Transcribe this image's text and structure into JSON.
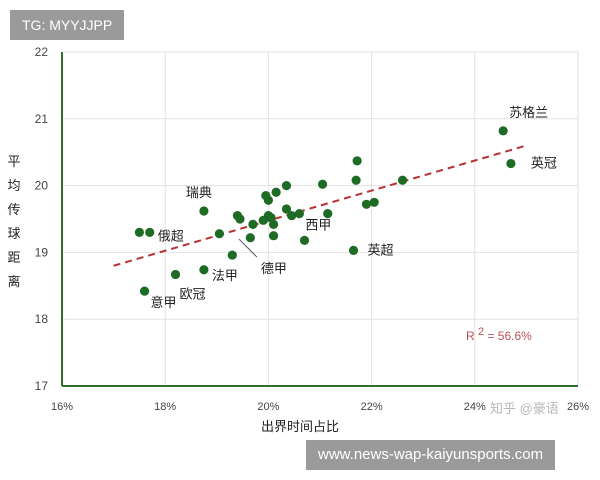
{
  "tag": "TG: MYYJJPP",
  "footer": "www.news-wap-kaiyunsports.com",
  "watermark": "知乎 @豪语",
  "chart_data": {
    "type": "scatter",
    "xlabel": "出界时间占比",
    "ylabel": "平均传球距离",
    "xlim": [
      16,
      26
    ],
    "ylim": [
      17,
      22
    ],
    "x_ticks": [
      "16%",
      "18%",
      "20%",
      "22%",
      "24%",
      "26%"
    ],
    "y_ticks": [
      "17",
      "18",
      "19",
      "20",
      "21",
      "22"
    ],
    "grid": true,
    "point_color": "#1e6b26",
    "trend_color": "#b83232",
    "trend_line": {
      "x": [
        17.0,
        25.0
      ],
      "y": [
        18.8,
        20.6
      ]
    },
    "annotation": {
      "prefix": "R",
      "sup": "2",
      "suffix": "= 56.6%"
    },
    "points": [
      {
        "x": 17.5,
        "y": 19.3
      },
      {
        "x": 17.7,
        "y": 19.3
      },
      {
        "x": 17.6,
        "y": 18.42
      },
      {
        "x": 18.2,
        "y": 18.67
      },
      {
        "x": 18.75,
        "y": 18.74
      },
      {
        "x": 18.75,
        "y": 19.62
      },
      {
        "x": 19.05,
        "y": 19.28
      },
      {
        "x": 19.3,
        "y": 18.96
      },
      {
        "x": 19.4,
        "y": 19.55
      },
      {
        "x": 19.45,
        "y": 19.5
      },
      {
        "x": 19.65,
        "y": 19.22
      },
      {
        "x": 19.7,
        "y": 19.42
      },
      {
        "x": 19.9,
        "y": 19.48
      },
      {
        "x": 19.95,
        "y": 19.85
      },
      {
        "x": 20.0,
        "y": 19.78
      },
      {
        "x": 20.0,
        "y": 19.55
      },
      {
        "x": 20.05,
        "y": 19.52
      },
      {
        "x": 20.1,
        "y": 19.25
      },
      {
        "x": 20.1,
        "y": 19.42
      },
      {
        "x": 20.15,
        "y": 19.9
      },
      {
        "x": 20.35,
        "y": 20.0
      },
      {
        "x": 20.35,
        "y": 19.65
      },
      {
        "x": 20.45,
        "y": 19.55
      },
      {
        "x": 20.6,
        "y": 19.58
      },
      {
        "x": 20.7,
        "y": 19.18
      },
      {
        "x": 21.05,
        "y": 20.02
      },
      {
        "x": 21.15,
        "y": 19.58
      },
      {
        "x": 21.65,
        "y": 19.03
      },
      {
        "x": 21.7,
        "y": 20.08
      },
      {
        "x": 21.72,
        "y": 20.37
      },
      {
        "x": 21.9,
        "y": 19.72
      },
      {
        "x": 22.05,
        "y": 19.75
      },
      {
        "x": 22.6,
        "y": 20.08
      },
      {
        "x": 24.55,
        "y": 20.82
      },
      {
        "x": 24.7,
        "y": 20.33
      }
    ],
    "labels": [
      {
        "text": "苏格兰",
        "x": 24.55,
        "y": 20.82,
        "dx": 6,
        "dy": -14
      },
      {
        "text": "英冠",
        "x": 24.7,
        "y": 20.33,
        "dx": 20,
        "dy": 4
      },
      {
        "text": "瑞典",
        "x": 18.75,
        "y": 19.62,
        "dx": -18,
        "dy": -14
      },
      {
        "text": "俄超",
        "x": 17.7,
        "y": 19.3,
        "dx": 8,
        "dy": 8
      },
      {
        "text": "西甲",
        "x": 20.6,
        "y": 19.58,
        "dx": 6,
        "dy": 16
      },
      {
        "text": "英超",
        "x": 21.65,
        "y": 19.03,
        "dx": 14,
        "dy": 4
      },
      {
        "text": "德甲",
        "x": 19.7,
        "y": 19.08,
        "dx": 8,
        "dy": 26
      },
      {
        "text": "法甲",
        "x": 18.75,
        "y": 18.74,
        "dx": 8,
        "dy": 10
      },
      {
        "text": "欧冠",
        "x": 18.2,
        "y": 18.67,
        "dx": 4,
        "dy": 24
      },
      {
        "text": "意甲",
        "x": 17.6,
        "y": 18.42,
        "dx": 6,
        "dy": 16
      }
    ]
  }
}
